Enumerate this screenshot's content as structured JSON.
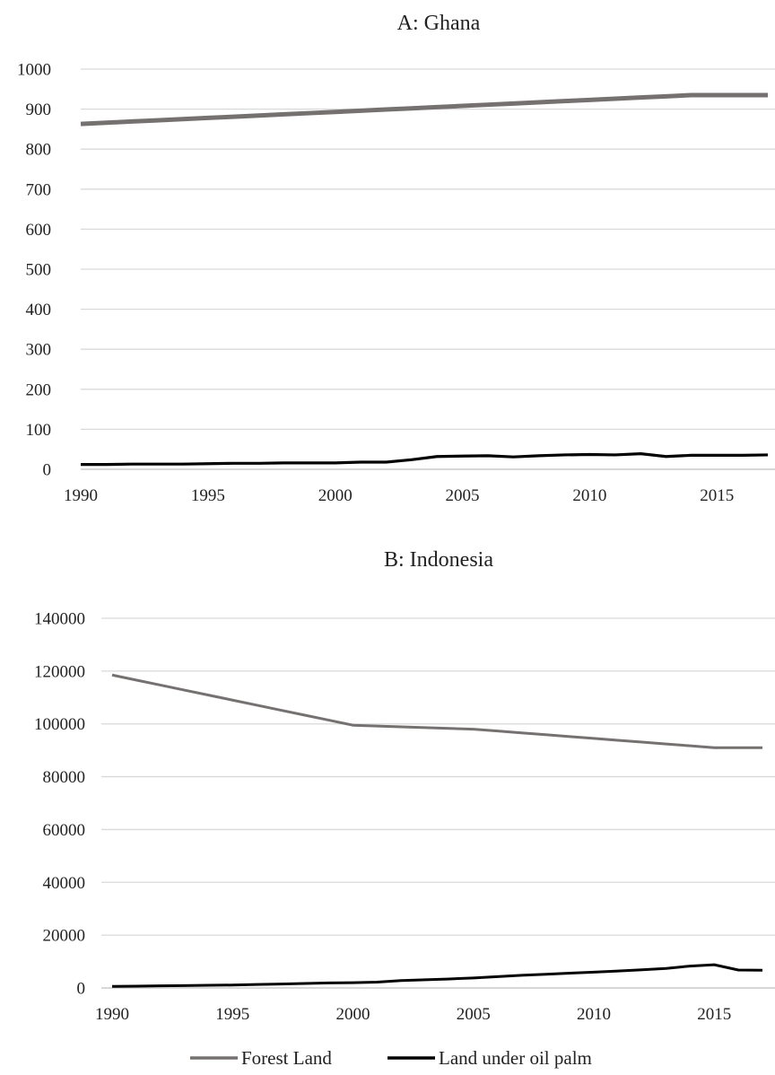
{
  "chart_data": [
    {
      "type": "line",
      "title": "A: Ghana",
      "xlabel": "",
      "ylabel": "",
      "ylim": [
        0,
        1000
      ],
      "yticks": [
        "0",
        "100",
        "200",
        "300",
        "400",
        "500",
        "600",
        "700",
        "800",
        "900",
        "1000"
      ],
      "xticks": [
        "1990",
        "1995",
        "2000",
        "2005",
        "2010",
        "2015"
      ],
      "x": [
        1990,
        1991,
        1992,
        1993,
        1994,
        1995,
        1996,
        1997,
        1998,
        1999,
        2000,
        2001,
        2002,
        2003,
        2004,
        2005,
        2006,
        2007,
        2008,
        2009,
        2010,
        2011,
        2012,
        2013,
        2014,
        2015,
        2016,
        2017
      ],
      "series": [
        {
          "name": "Forest Land",
          "color": "#767171",
          "values": [
            863,
            866,
            869,
            872,
            875,
            878,
            881,
            884,
            887,
            890,
            893,
            896,
            899,
            902,
            905,
            908,
            911,
            914,
            917,
            920,
            923,
            926,
            929,
            932,
            935,
            935,
            935,
            935
          ]
        },
        {
          "name": "Land under oil palm",
          "color": "#000000",
          "values": [
            12,
            12,
            13,
            13,
            13,
            14,
            15,
            15,
            16,
            16,
            16,
            18,
            18,
            24,
            32,
            33,
            34,
            31,
            34,
            36,
            37,
            36,
            39,
            32,
            35,
            35,
            35,
            36
          ]
        }
      ]
    },
    {
      "type": "line",
      "title": "B: Indonesia",
      "xlabel": "",
      "ylabel": "",
      "ylim": [
        0,
        140000
      ],
      "yticks": [
        "0",
        "20000",
        "40000",
        "60000",
        "80000",
        "100000",
        "120000",
        "140000"
      ],
      "xticks": [
        "1990",
        "1995",
        "2000",
        "2005",
        "2010",
        "2015"
      ],
      "x": [
        1990,
        1991,
        1992,
        1993,
        1994,
        1995,
        1996,
        1997,
        1998,
        1999,
        2000,
        2001,
        2002,
        2003,
        2004,
        2005,
        2006,
        2007,
        2008,
        2009,
        2010,
        2011,
        2012,
        2013,
        2014,
        2015,
        2016,
        2017
      ],
      "series": [
        {
          "name": "Forest Land",
          "color": "#767171",
          "values": [
            118500,
            116600,
            114700,
            112800,
            110900,
            109000,
            107100,
            105200,
            103300,
            101400,
            99500,
            99200,
            98900,
            98600,
            98300,
            98000,
            97300,
            96600,
            95900,
            95200,
            94500,
            93800,
            93100,
            92400,
            91700,
            91000,
            91000,
            91000
          ]
        },
        {
          "name": "Land under oil palm",
          "color": "#000000",
          "values": [
            600,
            700,
            800,
            900,
            1000,
            1100,
            1300,
            1500,
            1700,
            1900,
            2000,
            2200,
            2800,
            3100,
            3400,
            3800,
            4300,
            4800,
            5200,
            5600,
            6000,
            6400,
            6900,
            7400,
            8300,
            8800,
            6800,
            6700
          ]
        }
      ]
    }
  ],
  "legend": {
    "items": [
      {
        "label": "Forest Land",
        "color": "#767171"
      },
      {
        "label": "Land under oil palm",
        "color": "#000000"
      }
    ]
  }
}
